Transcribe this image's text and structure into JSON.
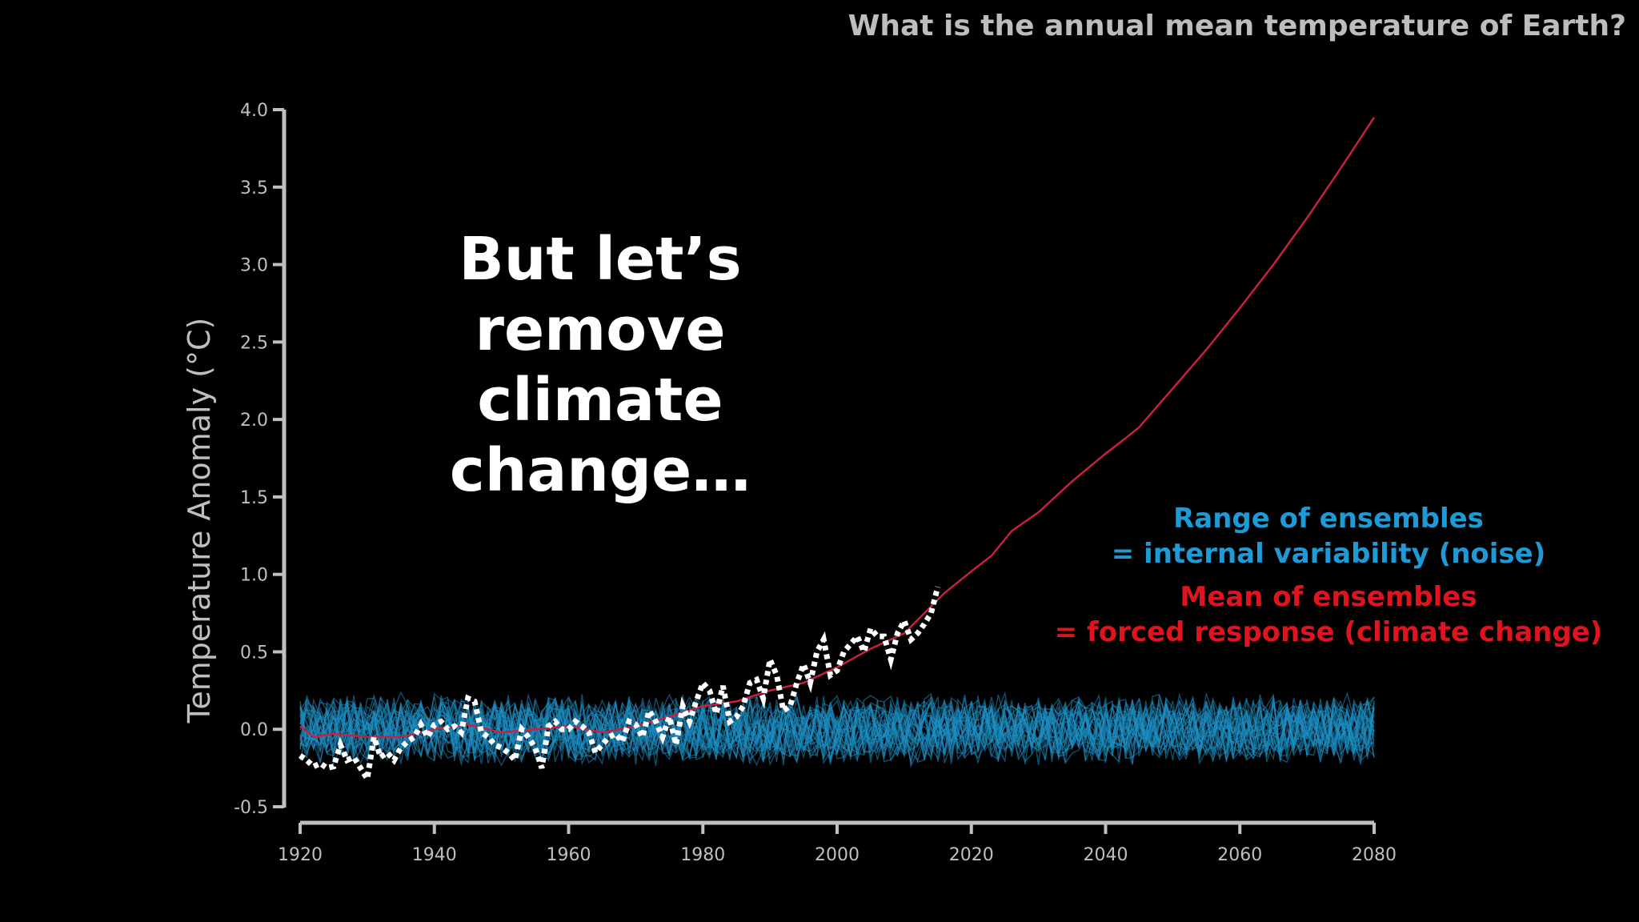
{
  "slide": {
    "title": "What is the annual mean temperature of Earth?",
    "headline": [
      "But let’s remove",
      "climate change…"
    ],
    "annotations": {
      "ensemble_range": [
        "Range of ensembles",
        "= internal variability (noise)"
      ],
      "ensemble_mean": [
        "Mean of ensembles",
        "= forced response (climate change)"
      ]
    }
  },
  "colors": {
    "background": "#000000",
    "axis": "#bfbfbf",
    "ensemble": "#1d8fc4",
    "mean": "#c8203f",
    "observed": "#ffffff",
    "annotation_blue": "#1e9ad6",
    "annotation_red": "#e0141e"
  },
  "chart_data": {
    "type": "line",
    "ylabel": "Temperature Anomaly (°C)",
    "xlim": [
      1920,
      2080
    ],
    "ylim": [
      -0.5,
      4.0
    ],
    "xticks": [
      1920,
      1940,
      1960,
      1980,
      2000,
      2020,
      2040,
      2060,
      2080
    ],
    "yticks": [
      -0.5,
      0.0,
      0.5,
      1.0,
      1.5,
      2.0,
      2.5,
      3.0,
      3.5,
      4.0
    ],
    "ytick_labels": [
      "-0.5",
      "0.0",
      "0.5",
      "1.0",
      "1.5",
      "2.0",
      "2.5",
      "3.0",
      "3.5",
      "4.0"
    ],
    "grid": false,
    "series": [
      {
        "role": "ensemble-mean",
        "style": "solid",
        "color": "#c8203f",
        "x": [
          1920,
          1922,
          1925,
          1930,
          1935,
          1940,
          1945,
          1950,
          1955,
          1960,
          1965,
          1970,
          1975,
          1980,
          1985,
          1990,
          1995,
          2000,
          2005,
          2010,
          2013,
          2016,
          2020,
          2023,
          2026,
          2030,
          2035,
          2040,
          2043,
          2045,
          2050,
          2055,
          2060,
          2065,
          2070,
          2075,
          2080
        ],
        "y": [
          0.02,
          -0.05,
          -0.03,
          -0.05,
          -0.05,
          0.0,
          0.03,
          -0.02,
          0.0,
          0.02,
          -0.02,
          0.02,
          0.08,
          0.15,
          0.18,
          0.25,
          0.3,
          0.4,
          0.52,
          0.62,
          0.75,
          0.88,
          1.02,
          1.12,
          1.28,
          1.4,
          1.6,
          1.78,
          1.88,
          1.95,
          2.2,
          2.45,
          2.72,
          3.0,
          3.3,
          3.62,
          3.95
        ]
      },
      {
        "role": "observed",
        "style": "dashed",
        "color": "#ffffff",
        "x": [
          1920,
          1921,
          1922,
          1923,
          1924,
          1925,
          1926,
          1927,
          1928,
          1929,
          1930,
          1931,
          1932,
          1933,
          1934,
          1935,
          1936,
          1937,
          1938,
          1939,
          1940,
          1941,
          1942,
          1943,
          1944,
          1945,
          1946,
          1947,
          1948,
          1949,
          1950,
          1951,
          1952,
          1953,
          1954,
          1955,
          1956,
          1957,
          1958,
          1959,
          1960,
          1961,
          1962,
          1963,
          1964,
          1965,
          1966,
          1967,
          1968,
          1969,
          1970,
          1971,
          1972,
          1973,
          1974,
          1975,
          1976,
          1977,
          1978,
          1979,
          1980,
          1981,
          1982,
          1983,
          1984,
          1985,
          1986,
          1987,
          1988,
          1989,
          1990,
          1991,
          1992,
          1993,
          1994,
          1995,
          1996,
          1997,
          1998,
          1999,
          2000,
          2001,
          2002,
          2003,
          2004,
          2005,
          2006,
          2007,
          2008,
          2009,
          2010,
          2011,
          2012,
          2013,
          2014,
          2015
        ],
        "y": [
          -0.17,
          -0.2,
          -0.24,
          -0.22,
          -0.25,
          -0.24,
          -0.1,
          -0.2,
          -0.18,
          -0.25,
          -0.32,
          -0.05,
          -0.18,
          -0.15,
          -0.2,
          -0.12,
          -0.08,
          -0.05,
          0.03,
          -0.05,
          0.03,
          0.05,
          0.0,
          0.02,
          -0.02,
          0.2,
          0.18,
          -0.02,
          -0.05,
          -0.1,
          -0.12,
          -0.15,
          -0.2,
          0.0,
          -0.05,
          -0.12,
          -0.25,
          0.02,
          0.05,
          0.0,
          0.0,
          0.05,
          0.02,
          -0.02,
          -0.15,
          -0.1,
          -0.05,
          -0.03,
          -0.08,
          0.05,
          0.03,
          -0.05,
          0.12,
          0.05,
          -0.05,
          0.08,
          -0.1,
          0.15,
          0.05,
          0.18,
          0.3,
          0.25,
          0.1,
          0.28,
          0.05,
          0.08,
          0.15,
          0.3,
          0.32,
          0.2,
          0.45,
          0.35,
          0.12,
          0.15,
          0.3,
          0.42,
          0.3,
          0.5,
          0.58,
          0.35,
          0.38,
          0.5,
          0.55,
          0.6,
          0.5,
          0.65,
          0.6,
          0.6,
          0.45,
          0.62,
          0.7,
          0.58,
          0.62,
          0.68,
          0.75,
          0.92
        ]
      }
    ],
    "ensemble": {
      "role": "ensemble-members",
      "color": "#1d8fc4",
      "members": 30,
      "x_range": [
        1920,
        2080
      ],
      "y_spread": [
        -0.3,
        0.35
      ],
      "center": 0.0
    }
  }
}
